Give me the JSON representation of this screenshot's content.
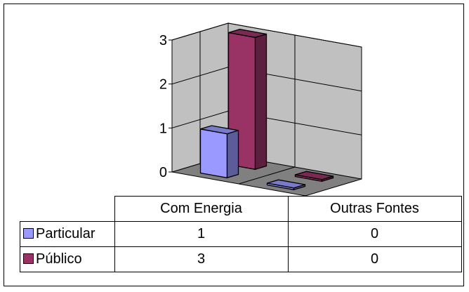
{
  "chart_data": {
    "type": "bar",
    "three_d": true,
    "categories": [
      "Com Energia",
      "Outras Fontes"
    ],
    "series": [
      {
        "name": "Particular",
        "values": [
          1,
          0
        ],
        "color": "#9999ff"
      },
      {
        "name": "Público",
        "values": [
          3,
          0
        ],
        "color": "#993366"
      }
    ],
    "ylim": [
      0,
      3
    ],
    "yticks": [
      "0",
      "1",
      "2",
      "3"
    ],
    "grid": true,
    "legend": "data-table",
    "wall_color": "#c0c0c0",
    "floor_color": "#808080"
  },
  "table": {
    "columns": [
      "Com Energia",
      "Outras Fontes"
    ],
    "rows": [
      {
        "label": "Particular",
        "values": [
          "1",
          "0"
        ]
      },
      {
        "label": "Público",
        "values": [
          "3",
          "0"
        ]
      }
    ]
  }
}
